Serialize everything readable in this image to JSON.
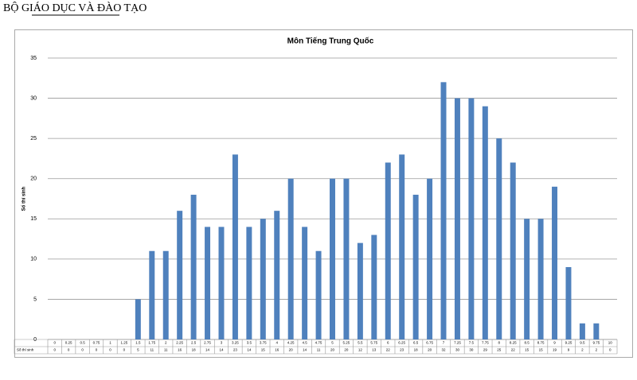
{
  "header": {
    "title": "BỘ GIÁO DỤC VÀ ĐÀO TẠO"
  },
  "chart_data": {
    "type": "bar",
    "title": "Môn Tiếng Trung Quốc",
    "y_label": "Số thí sinh",
    "categories": [
      "0",
      "0.25",
      "0.5",
      "0.75",
      "1",
      "1.25",
      "1.5",
      "1.75",
      "2",
      "2.25",
      "2.5",
      "2.75",
      "3",
      "3.25",
      "3.5",
      "3.75",
      "4",
      "4.25",
      "4.5",
      "4.75",
      "5",
      "5.25",
      "5.5",
      "5.75",
      "6",
      "6.25",
      "6.5",
      "6.75",
      "7",
      "7.25",
      "7.5",
      "7.75",
      "8",
      "8.25",
      "8.5",
      "8.75",
      "9",
      "9.25",
      "9.5",
      "9.75",
      "10"
    ],
    "values": [
      0,
      0,
      0,
      0,
      0,
      0,
      5,
      11,
      11,
      16,
      18,
      14,
      14,
      23,
      14,
      15,
      16,
      20,
      14,
      11,
      20,
      20,
      12,
      13,
      22,
      23,
      18,
      20,
      32,
      30,
      30,
      29,
      25,
      22,
      15,
      15,
      19,
      9,
      2,
      2,
      0
    ],
    "color": "#4f81bd",
    "ylim": [
      0,
      35
    ],
    "yticks": [
      0,
      5,
      10,
      15,
      20,
      25,
      30,
      35
    ],
    "grid": true
  }
}
